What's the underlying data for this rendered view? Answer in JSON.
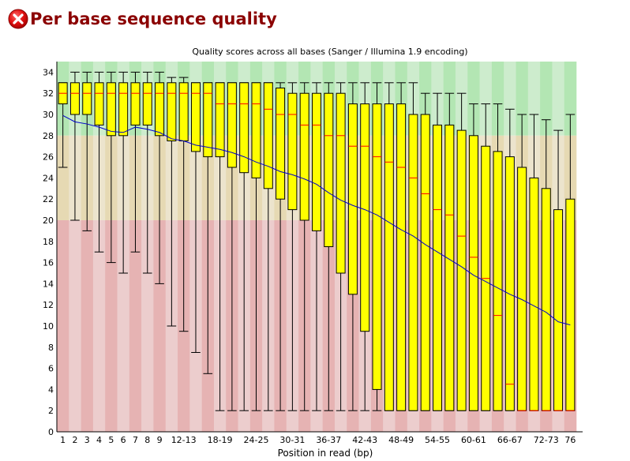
{
  "header": {
    "title": "Per base sequence quality",
    "status_icon": "fail-icon"
  },
  "colors": {
    "zone_good": "#b3e6b3",
    "zone_good_alt": "#cdeccd",
    "zone_warn": "#e6d9b3",
    "zone_warn_alt": "#ece4cd",
    "zone_fail": "#e6b3b3",
    "zone_fail_alt": "#eccdcd",
    "box_fill": "#ffff00",
    "median": "#ff0000",
    "mean_line": "#0000cc",
    "title_red": "#8b0000"
  },
  "chart_data": {
    "type": "boxplot",
    "title": "Quality scores across all bases (Sanger / Illumina 1.9 encoding)",
    "xlabel": "Position in read (bp)",
    "ylabel": "",
    "ylim": [
      0,
      35
    ],
    "yticks": [
      0,
      2,
      4,
      6,
      8,
      10,
      12,
      14,
      16,
      18,
      20,
      22,
      24,
      26,
      28,
      30,
      32,
      34
    ],
    "zones": {
      "fail_below": 20,
      "warn_below": 28
    },
    "categories": [
      "1",
      "2",
      "3",
      "4",
      "5",
      "6",
      "7",
      "8",
      "9",
      "10-11",
      "12-13",
      "14-15",
      "16-17",
      "18-19",
      "20-21",
      "22-23",
      "24-25",
      "26-27",
      "28-29",
      "30-31",
      "32-33",
      "34-35",
      "36-37",
      "38-39",
      "40-41",
      "42-43",
      "44-45",
      "46-47",
      "48-49",
      "50-51",
      "52-53",
      "54-55",
      "56-57",
      "58-59",
      "60-61",
      "62-63",
      "64-65",
      "66-67",
      "68-69",
      "70-71",
      "72-73",
      "74-75",
      "76"
    ],
    "xtick_labels": [
      "1",
      "2",
      "3",
      "4",
      "5",
      "6",
      "7",
      "8",
      "9",
      "",
      "12-13",
      "",
      "",
      "18-19",
      "",
      "",
      "24-25",
      "",
      "",
      "30-31",
      "",
      "",
      "36-37",
      "",
      "",
      "42-43",
      "",
      "",
      "48-49",
      "",
      "",
      "54-55",
      "",
      "",
      "60-61",
      "",
      "",
      "66-67",
      "",
      "",
      "72-73",
      "",
      "76"
    ],
    "series": [
      {
        "role": "upper_whisker",
        "values": [
          33,
          34,
          34,
          34,
          34,
          34,
          34,
          34,
          34,
          33.5,
          33.5,
          33,
          33,
          33,
          33,
          33,
          33,
          33,
          33,
          33,
          33,
          33,
          33,
          33,
          33,
          33,
          33,
          33,
          33,
          33,
          32,
          32,
          32,
          32,
          31,
          31,
          31,
          30.5,
          30,
          30,
          29.5,
          28.5,
          30
        ]
      },
      {
        "role": "upper_quartile",
        "values": [
          33,
          33,
          33,
          33,
          33,
          33,
          33,
          33,
          33,
          33,
          33,
          33,
          33,
          33,
          33,
          33,
          33,
          33,
          32.5,
          32,
          32,
          32,
          32,
          32,
          31,
          31,
          31,
          31,
          31,
          30,
          30,
          29,
          29,
          28.5,
          28,
          27,
          26.5,
          26,
          25,
          24,
          23,
          21,
          22
        ]
      },
      {
        "role": "median",
        "values": [
          32,
          32,
          32,
          32,
          32,
          32,
          32,
          32,
          32,
          32,
          32,
          32,
          32,
          31,
          31,
          31,
          31,
          30.5,
          30,
          30,
          29,
          29,
          28,
          28,
          27,
          27,
          26,
          25.5,
          25,
          24,
          22.5,
          21,
          20.5,
          18.5,
          16.5,
          14.5,
          11,
          4.5,
          2,
          2,
          2,
          2,
          2
        ]
      },
      {
        "role": "lower_quartile",
        "values": [
          31,
          30,
          30,
          29,
          28,
          28,
          29,
          29,
          28,
          27.5,
          27.5,
          26.5,
          26,
          26,
          25,
          24.5,
          24,
          23,
          22,
          21,
          20,
          19,
          17.5,
          15,
          13,
          9.5,
          4,
          2,
          2,
          2,
          2,
          2,
          2,
          2,
          2,
          2,
          2,
          2,
          2,
          2,
          2,
          2,
          2
        ]
      },
      {
        "role": "lower_whisker",
        "values": [
          25,
          20,
          19,
          17,
          16,
          15,
          17,
          15,
          14,
          10,
          9.5,
          7.5,
          5.5,
          2,
          2,
          2,
          2,
          2,
          2,
          2,
          2,
          2,
          2,
          2,
          2,
          2,
          2,
          2,
          2,
          2,
          2,
          2,
          2,
          2,
          2,
          2,
          2,
          2,
          2,
          2,
          2,
          2,
          2
        ]
      },
      {
        "role": "mean",
        "values": [
          29.9,
          29.3,
          29.1,
          28.8,
          28.4,
          28.3,
          28.8,
          28.6,
          28.3,
          27.7,
          27.5,
          27.1,
          26.9,
          26.7,
          26.4,
          26.0,
          25.5,
          25.1,
          24.6,
          24.3,
          23.9,
          23.4,
          22.6,
          21.9,
          21.4,
          21.0,
          20.5,
          19.8,
          19.1,
          18.5,
          17.7,
          17.0,
          16.3,
          15.6,
          14.8,
          14.2,
          13.6,
          13.0,
          12.5,
          11.9,
          11.3,
          10.4,
          10.1
        ]
      }
    ]
  }
}
